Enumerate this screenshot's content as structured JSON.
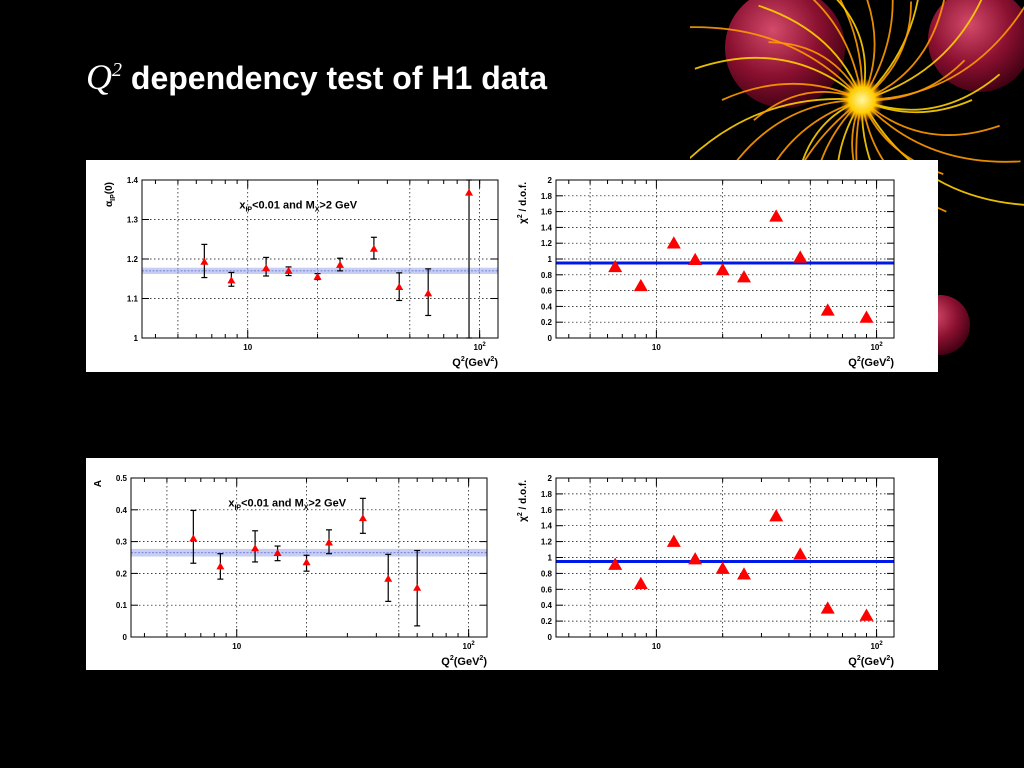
{
  "title": {
    "var": "Q",
    "sup": "2",
    "text": "dependency test of H1 data"
  },
  "colors": {
    "marker": "#ff0000",
    "fit_line": "#0018e8",
    "band": "#9aa6e8",
    "error": "#000000"
  },
  "chart_data": [
    {
      "type": "scatter",
      "ylabel_main": "α",
      "ylabel_sub": "IP",
      "ylabel_tail": "(0)",
      "xlabel_main": "Q",
      "xlabel_sup": "2",
      "xlabel_tail": "(GeV",
      "xlabel_sup2": "2",
      "xlabel_close": ")",
      "annotation": {
        "a": "x",
        "a_sub": "IP",
        "b": "<0.01 and M",
        "b_sub": "X",
        "c": ">2 GeV"
      },
      "xscale": "log",
      "xlim": [
        3.5,
        120
      ],
      "ylim": [
        1,
        1.4
      ],
      "yticks": [
        1,
        1.1,
        1.2,
        1.3,
        1.4
      ],
      "ytick_labels": [
        "1",
        "1.1",
        "1.2",
        "1.3",
        "1.4"
      ],
      "xtick_labels": [
        {
          "x": 10,
          "base": "10",
          "sup": ""
        },
        {
          "x": 100,
          "base": "10",
          "sup": "2"
        }
      ],
      "band": {
        "center": 1.17,
        "half_width": 0.008
      },
      "points": [
        {
          "x": 6.5,
          "y": 1.193,
          "lo": 1.153,
          "hi": 1.237
        },
        {
          "x": 8.5,
          "y": 1.146,
          "lo": 1.131,
          "hi": 1.166
        },
        {
          "x": 12,
          "y": 1.177,
          "lo": 1.157,
          "hi": 1.204
        },
        {
          "x": 15,
          "y": 1.17,
          "lo": 1.158,
          "hi": 1.18
        },
        {
          "x": 20,
          "y": 1.155,
          "lo": 1.148,
          "hi": 1.163
        },
        {
          "x": 25,
          "y": 1.185,
          "lo": 1.17,
          "hi": 1.202
        },
        {
          "x": 35,
          "y": 1.226,
          "lo": 1.2,
          "hi": 1.255
        },
        {
          "x": 45,
          "y": 1.129,
          "lo": 1.095,
          "hi": 1.165
        },
        {
          "x": 60,
          "y": 1.113,
          "lo": 1.057,
          "hi": 1.175
        },
        {
          "x": 90,
          "y": 1.368,
          "lo": 1.0,
          "hi": 1.4
        }
      ]
    },
    {
      "type": "scatter",
      "ylabel_main": "χ",
      "ylabel_sup": "2",
      "ylabel_tail": " / d.o.f.",
      "xlabel_main": "Q",
      "xlabel_sup": "2",
      "xlabel_tail": "(GeV",
      "xlabel_sup2": "2",
      "xlabel_close": ")",
      "xscale": "log",
      "xlim": [
        3.5,
        120
      ],
      "ylim": [
        0,
        2
      ],
      "yticks": [
        0,
        0.2,
        0.4,
        0.6,
        0.8,
        1,
        1.2,
        1.4,
        1.6,
        1.8,
        2
      ],
      "ytick_labels": [
        "0",
        "0.2",
        "0.4",
        "0.6",
        "0.8",
        "1",
        "1.2",
        "1.4",
        "1.6",
        "1.8",
        "2"
      ],
      "xtick_labels": [
        {
          "x": 10,
          "base": "10",
          "sup": ""
        },
        {
          "x": 100,
          "base": "10",
          "sup": "2"
        }
      ],
      "hline": 0.95,
      "points": [
        {
          "x": 6.5,
          "y": 0.9
        },
        {
          "x": 8.5,
          "y": 0.66
        },
        {
          "x": 12,
          "y": 1.2
        },
        {
          "x": 15,
          "y": 0.99
        },
        {
          "x": 20,
          "y": 0.86
        },
        {
          "x": 25,
          "y": 0.77
        },
        {
          "x": 35,
          "y": 1.54
        },
        {
          "x": 45,
          "y": 1.02
        },
        {
          "x": 60,
          "y": 0.35
        },
        {
          "x": 90,
          "y": 0.26
        }
      ]
    },
    {
      "type": "scatter",
      "ylabel_main": "A",
      "xlabel_main": "Q",
      "xlabel_sup": "2",
      "xlabel_tail": "(GeV",
      "xlabel_sup2": "2",
      "xlabel_close": ")",
      "annotation": {
        "a": "x",
        "a_sub": "IP",
        "b": "<0.01 and M",
        "b_sub": "X",
        "c": ">2 GeV"
      },
      "xscale": "log",
      "xlim": [
        3.5,
        120
      ],
      "ylim": [
        0,
        0.5
      ],
      "yticks": [
        0,
        0.1,
        0.2,
        0.3,
        0.4,
        0.5
      ],
      "ytick_labels": [
        "0",
        "0.1",
        "0.2",
        "0.3",
        "0.4",
        "0.5"
      ],
      "xtick_labels": [
        {
          "x": 10,
          "base": "10",
          "sup": ""
        },
        {
          "x": 100,
          "base": "10",
          "sup": "2"
        }
      ],
      "band": {
        "center": 0.265,
        "half_width": 0.012
      },
      "points": [
        {
          "x": 6.5,
          "y": 0.31,
          "lo": 0.232,
          "hi": 0.398
        },
        {
          "x": 8.5,
          "y": 0.222,
          "lo": 0.182,
          "hi": 0.262
        },
        {
          "x": 12,
          "y": 0.279,
          "lo": 0.236,
          "hi": 0.334
        },
        {
          "x": 15,
          "y": 0.264,
          "lo": 0.24,
          "hi": 0.286
        },
        {
          "x": 20,
          "y": 0.235,
          "lo": 0.207,
          "hi": 0.257
        },
        {
          "x": 25,
          "y": 0.297,
          "lo": 0.262,
          "hi": 0.337
        },
        {
          "x": 35,
          "y": 0.374,
          "lo": 0.326,
          "hi": 0.436
        },
        {
          "x": 45,
          "y": 0.183,
          "lo": 0.112,
          "hi": 0.26
        },
        {
          "x": 60,
          "y": 0.155,
          "lo": 0.035,
          "hi": 0.272
        }
      ]
    },
    {
      "type": "scatter",
      "ylabel_main": "χ",
      "ylabel_sup": "2",
      "ylabel_tail": " / d.o.f.",
      "xlabel_main": "Q",
      "xlabel_sup": "2",
      "xlabel_tail": "(GeV",
      "xlabel_sup2": "2",
      "xlabel_close": ")",
      "xscale": "log",
      "xlim": [
        3.5,
        120
      ],
      "ylim": [
        0,
        2
      ],
      "yticks": [
        0,
        0.2,
        0.4,
        0.6,
        0.8,
        1,
        1.2,
        1.4,
        1.6,
        1.8,
        2
      ],
      "ytick_labels": [
        "0",
        "0.2",
        "0.4",
        "0.6",
        "0.8",
        "1",
        "1.2",
        "1.4",
        "1.6",
        "1.8",
        "2"
      ],
      "xtick_labels": [
        {
          "x": 10,
          "base": "10",
          "sup": ""
        },
        {
          "x": 100,
          "base": "10",
          "sup": "2"
        }
      ],
      "hline": 0.95,
      "points": [
        {
          "x": 6.5,
          "y": 0.91
        },
        {
          "x": 8.5,
          "y": 0.67
        },
        {
          "x": 12,
          "y": 1.2
        },
        {
          "x": 15,
          "y": 0.98
        },
        {
          "x": 20,
          "y": 0.86
        },
        {
          "x": 25,
          "y": 0.79
        },
        {
          "x": 35,
          "y": 1.52
        },
        {
          "x": 45,
          "y": 1.04
        },
        {
          "x": 60,
          "y": 0.36
        },
        {
          "x": 90,
          "y": 0.27
        }
      ]
    }
  ]
}
